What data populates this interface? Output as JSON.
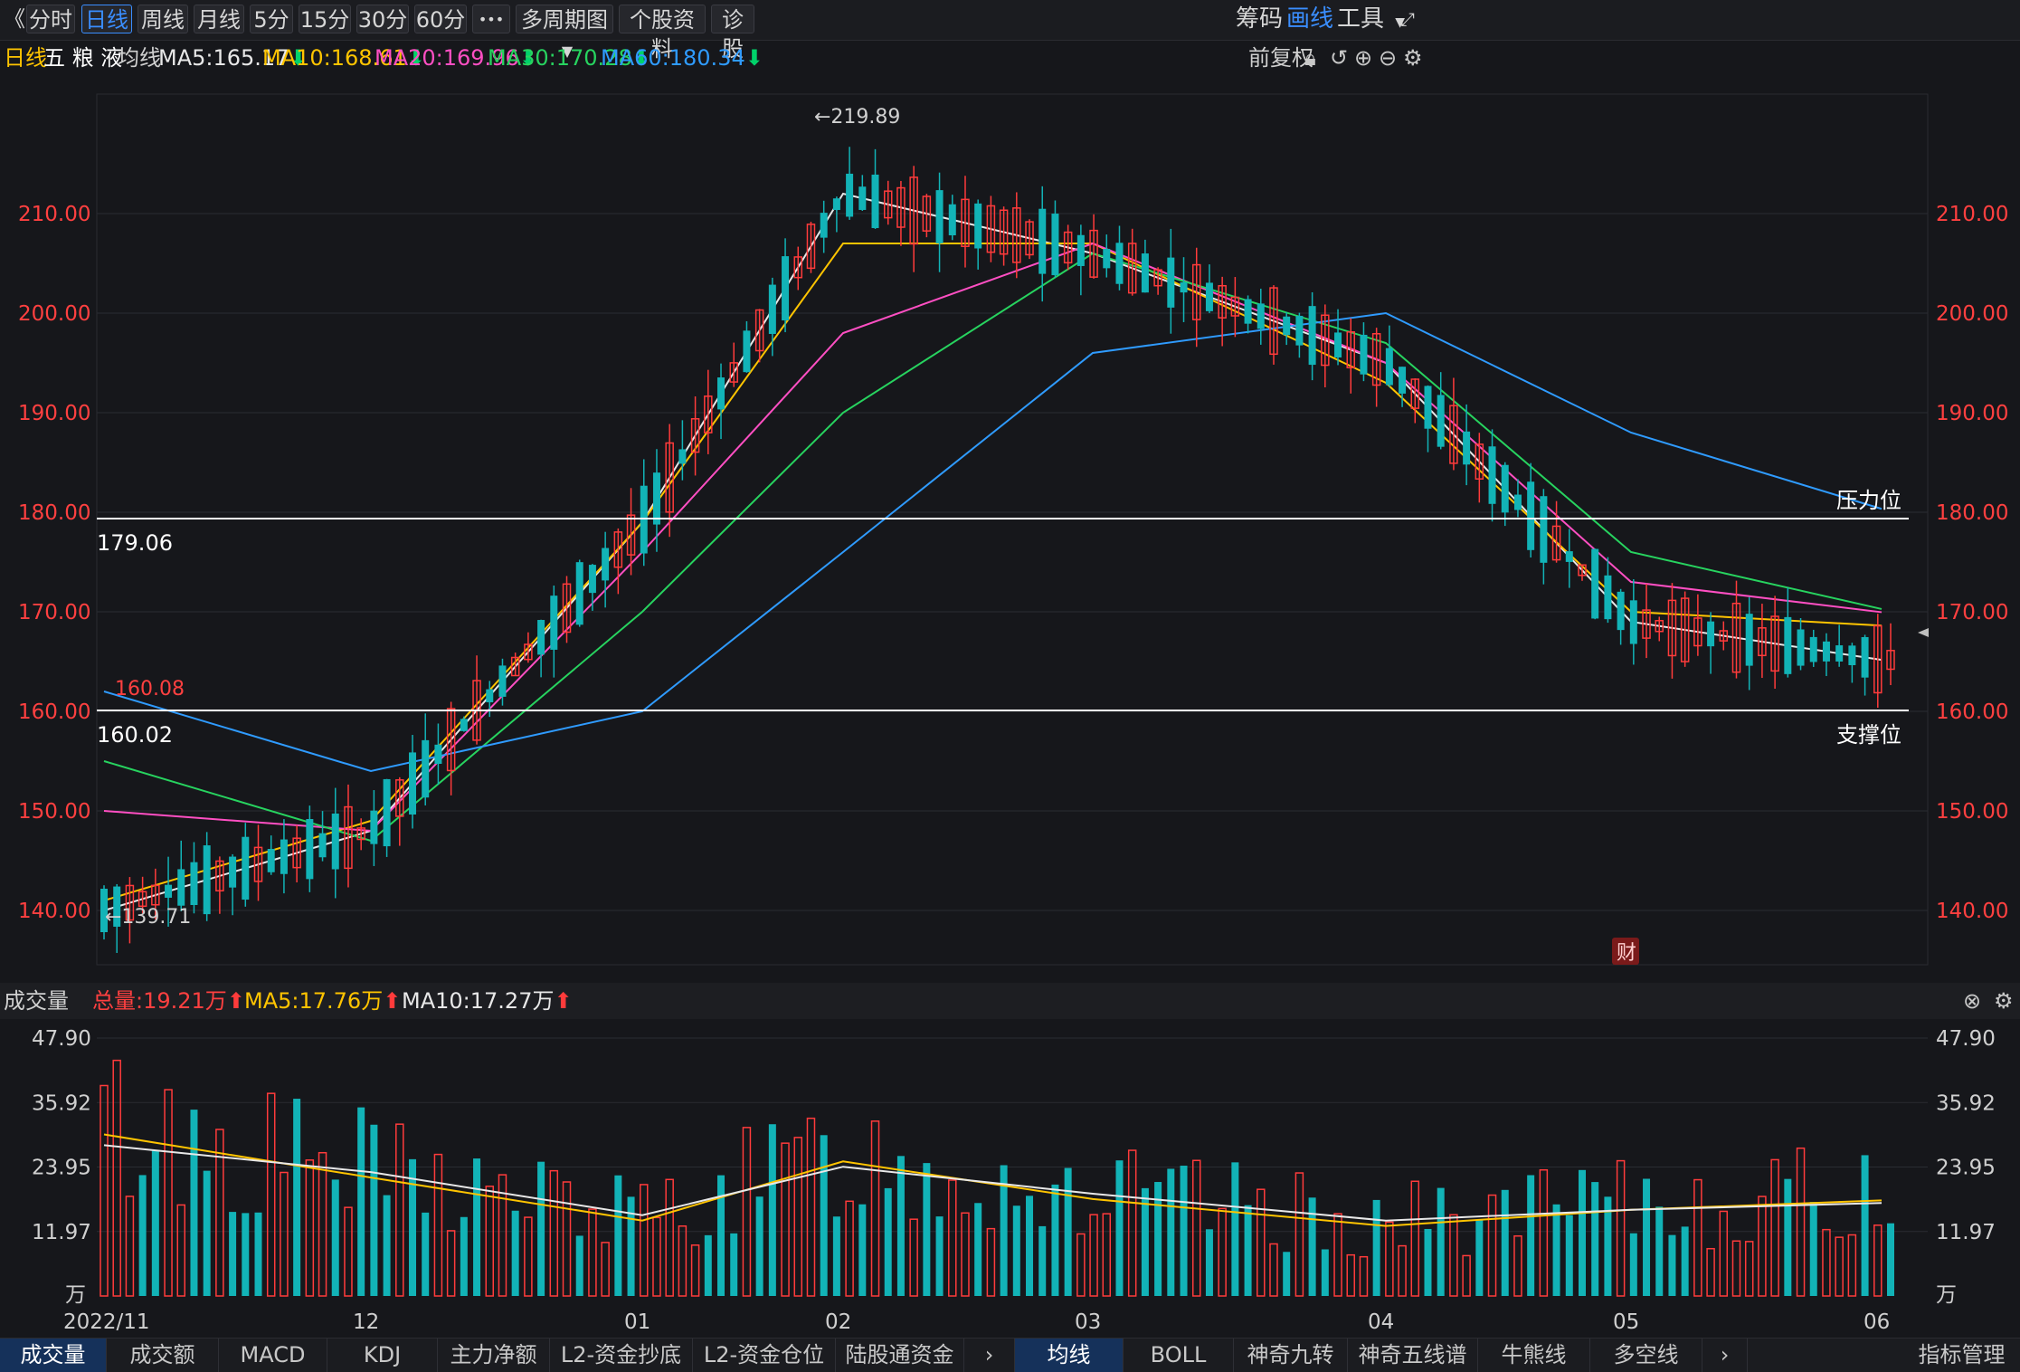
{
  "toolbar": {
    "back_glyph": "《",
    "tabs": [
      "分时",
      "日线",
      "周线",
      "月线",
      "5分",
      "15分",
      "30分",
      "60分"
    ],
    "more": "•••",
    "multi_period": "多周期图",
    "stock_info": "个股资料",
    "diagnose": "诊股",
    "right": {
      "chips": "筹码",
      "draw": "画线",
      "tools": "工具"
    }
  },
  "ma_bar": {
    "period": "日线",
    "stock_name": "五 粮 液",
    "label": "均线",
    "items": [
      {
        "text": "MA5:165.17",
        "color": "#e8e8e8"
      },
      {
        "text": "MA10:168.61",
        "color": "#ffc400"
      },
      {
        "text": "MA20:169.96",
        "color": "#ff4fc3"
      },
      {
        "text": "MA30:170.28",
        "color": "#27d35f"
      },
      {
        "text": "MA60:180.34",
        "color": "#2f9bff"
      }
    ],
    "right_label": "前复权"
  },
  "volume_header": {
    "label": "成交量",
    "total": "总量:19.21万",
    "ma5": "MA5:17.76万",
    "ma10": "MA10:17.27万"
  },
  "bottom_tabs": {
    "left": [
      "成交量",
      "成交额",
      "MACD",
      "KDJ",
      "主力净额",
      "L2-资金抄底",
      "L2-资金仓位",
      "陆股通资金"
    ],
    "right": [
      "均线",
      "BOLL",
      "神奇九转",
      "神奇五线谱",
      "牛熊线",
      "多空线"
    ],
    "manage": "指标管理"
  },
  "annotations": {
    "resistance_label": "压力位",
    "resistance_value": "179.06",
    "support_label": "支撑位",
    "support_value": "160.02",
    "ma60_start_value": "160.08",
    "high_marker": "←219.89",
    "low_marker": "←139.71",
    "finance_badge": "财"
  },
  "colors": {
    "up": "#ff3b3b",
    "down": "#12b3b7",
    "ma5": "#e8e8e8",
    "ma10": "#ffc400",
    "ma20": "#ff4fc3",
    "ma30": "#27d35f",
    "ma60": "#2f9bff",
    "accent": "#3a8eff",
    "axis_price": "#ff4040"
  },
  "chart_data": [
    {
      "type": "candlestick",
      "title": "五粮液 日线",
      "y_ticks": [
        "210.00",
        "200.00",
        "190.00",
        "180.00",
        "170.00",
        "160.00",
        "150.00",
        "140.00"
      ],
      "ylim": [
        135,
        225
      ],
      "x_ticks": [
        "2022/11",
        "12",
        "01",
        "02",
        "03",
        "04",
        "05",
        "06"
      ],
      "horizontal_lines": [
        179.06,
        160.02
      ],
      "high": 219.89,
      "low": 139.71,
      "series": [
        {
          "name": "MA5",
          "x": [
            "2022/11",
            "12",
            "01",
            "02",
            "03",
            "04",
            "05",
            "06"
          ],
          "values": [
            140,
            148,
            179,
            212,
            206,
            195,
            169,
            165.17
          ]
        },
        {
          "name": "MA10",
          "x": [
            "2022/11",
            "12",
            "01",
            "02",
            "03",
            "04",
            "05",
            "06"
          ],
          "values": [
            141,
            149,
            179,
            207,
            207,
            193,
            170,
            168.61
          ]
        },
        {
          "name": "MA20",
          "x": [
            "2022/11",
            "12",
            "01",
            "02",
            "03",
            "04",
            "05",
            "06"
          ],
          "values": [
            150,
            148,
            176,
            198,
            207,
            195,
            173,
            169.96
          ]
        },
        {
          "name": "MA30",
          "x": [
            "2022/11",
            "12",
            "01",
            "02",
            "03",
            "04",
            "05",
            "06"
          ],
          "values": [
            155,
            147,
            170,
            190,
            206,
            197,
            176,
            170.28
          ]
        },
        {
          "name": "MA60",
          "x": [
            "2022/11",
            "12",
            "01",
            "02",
            "03",
            "04",
            "05",
            "06"
          ],
          "values": [
            162,
            154,
            160,
            176,
            196,
            200,
            188,
            180.34
          ]
        }
      ]
    },
    {
      "type": "bar",
      "title": "成交量",
      "y_ticks": [
        "47.90",
        "35.92",
        "23.95",
        "11.97",
        "万"
      ],
      "ylim": [
        0,
        47.9
      ],
      "unit": "万",
      "x_ticks": [
        "2022/11",
        "12",
        "01",
        "02",
        "03",
        "04",
        "05",
        "06"
      ],
      "series": [
        {
          "name": "MA5",
          "values": [
            30,
            22,
            14,
            25,
            18,
            13,
            16,
            17.76
          ]
        },
        {
          "name": "MA10",
          "values": [
            28,
            23,
            15,
            24,
            19,
            14,
            16,
            17.27
          ]
        }
      ]
    }
  ]
}
